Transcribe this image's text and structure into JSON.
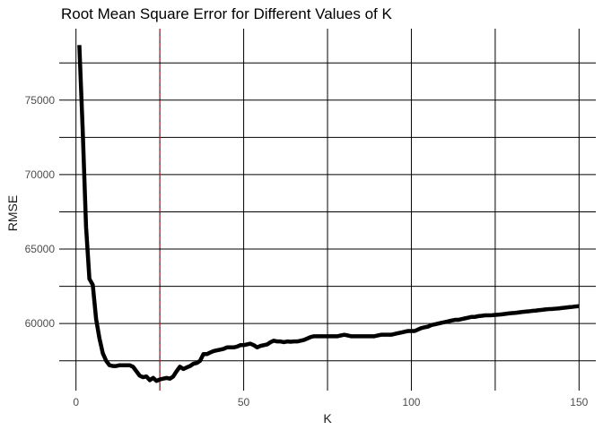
{
  "chart_data": {
    "type": "line",
    "title": "Root Mean Square Error for Different Values of K",
    "xlabel": "K",
    "ylabel": "RMSE",
    "xlim": [
      -5,
      155
    ],
    "ylim": [
      55500,
      79800
    ],
    "x_ticks": [
      0,
      50,
      100,
      150
    ],
    "x_tick_labels": [
      "0",
      "50",
      "100",
      "150"
    ],
    "y_ticks": [
      60000,
      65000,
      70000,
      75000
    ],
    "y_tick_labels": [
      "60000",
      "65000",
      "70000",
      "75000"
    ],
    "x_minor_gridlines": [
      25,
      75,
      125
    ],
    "y_minor_gridlines": [
      57500,
      62500,
      67500,
      72500,
      77500
    ],
    "grid": true,
    "legend": "none",
    "reference_line": {
      "axis": "x",
      "value": 25,
      "style": "dashed",
      "color": "#b2182b"
    },
    "series": [
      {
        "color": "#000000",
        "x": [
          1,
          2,
          3,
          4,
          5,
          6,
          7,
          8,
          9,
          10,
          11,
          12,
          13,
          14,
          15,
          16,
          17,
          18,
          19,
          20,
          21,
          22,
          23,
          24,
          25,
          26,
          27,
          28,
          29,
          30,
          31,
          32,
          33,
          34,
          35,
          36,
          37,
          38,
          39,
          40,
          41,
          42,
          43,
          44,
          45,
          46,
          47,
          48,
          49,
          50,
          51,
          52,
          53,
          54,
          55,
          56,
          57,
          58,
          59,
          60,
          61,
          62,
          63,
          64,
          65,
          66,
          67,
          68,
          69,
          70,
          71,
          72,
          73,
          74,
          75,
          76,
          77,
          78,
          79,
          80,
          81,
          82,
          83,
          84,
          85,
          86,
          87,
          88,
          89,
          90,
          91,
          92,
          93,
          94,
          95,
          96,
          97,
          98,
          99,
          100,
          101,
          102,
          103,
          104,
          105,
          106,
          107,
          108,
          109,
          110,
          111,
          112,
          113,
          114,
          115,
          116,
          117,
          118,
          119,
          120,
          121,
          122,
          123,
          124,
          125,
          126,
          127,
          128,
          129,
          130,
          131,
          132,
          133,
          134,
          135,
          136,
          137,
          138,
          139,
          140,
          141,
          142,
          143,
          144,
          145,
          146,
          147,
          148,
          149,
          150
        ],
        "values": [
          78700,
          73000,
          66500,
          63000,
          62600,
          60300,
          59000,
          58000,
          57500,
          57200,
          57150,
          57150,
          57200,
          57200,
          57200,
          57200,
          57100,
          56800,
          56500,
          56400,
          56450,
          56200,
          56350,
          56150,
          56250,
          56300,
          56350,
          56300,
          56450,
          56800,
          57100,
          56950,
          57050,
          57150,
          57300,
          57350,
          57500,
          57950,
          57950,
          58050,
          58150,
          58200,
          58250,
          58300,
          58400,
          58400,
          58400,
          58450,
          58550,
          58550,
          58600,
          58650,
          58550,
          58400,
          58500,
          58550,
          58600,
          58750,
          58850,
          58800,
          58800,
          58750,
          58800,
          58780,
          58800,
          58800,
          58850,
          58900,
          59000,
          59100,
          59150,
          59150,
          59150,
          59150,
          59150,
          59150,
          59150,
          59150,
          59200,
          59250,
          59200,
          59150,
          59150,
          59150,
          59150,
          59150,
          59150,
          59150,
          59150,
          59200,
          59250,
          59250,
          59250,
          59250,
          59300,
          59350,
          59400,
          59450,
          59500,
          59500,
          59500,
          59600,
          59700,
          59750,
          59800,
          59900,
          59950,
          60000,
          60050,
          60100,
          60150,
          60200,
          60250,
          60250,
          60300,
          60350,
          60400,
          60450,
          60450,
          60500,
          60520,
          60550,
          60550,
          60560,
          60580,
          60600,
          60620,
          60650,
          60680,
          60700,
          60720,
          60750,
          60780,
          60800,
          60820,
          60850,
          60870,
          60900,
          60920,
          60950,
          60970,
          60980,
          61000,
          61020,
          61050,
          61070,
          61100,
          61120,
          61150,
          61170
        ]
      }
    ]
  }
}
